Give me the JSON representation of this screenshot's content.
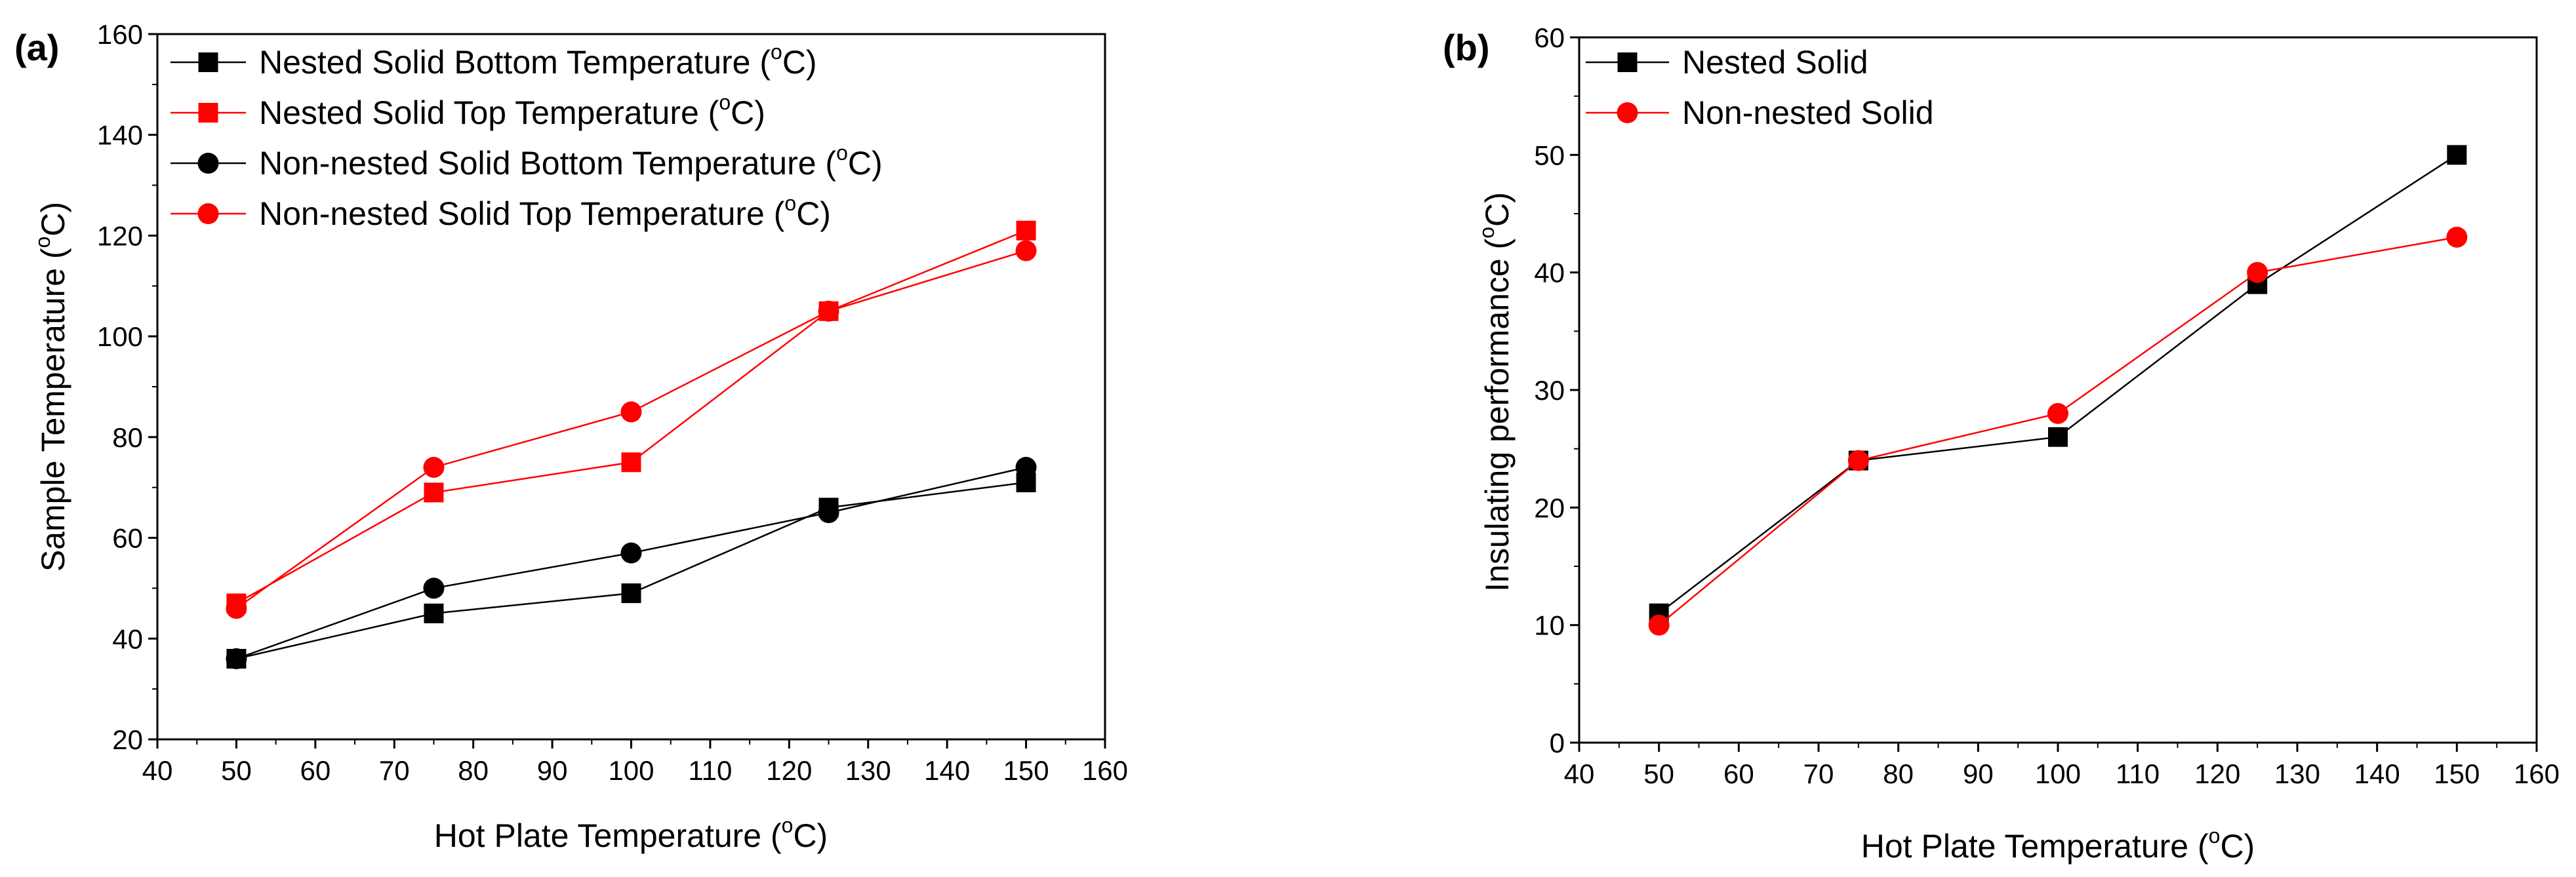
{
  "colors": {
    "black": "#000000",
    "red": "#ff0000"
  },
  "chart_data": [
    {
      "panel_label": "(a)",
      "type": "line",
      "xlabel": "Hot Plate Temperature (oC)",
      "xlabel_parts": {
        "before": "Hot Plate Temperature (",
        "sup": "o",
        "after": "C)"
      },
      "ylabel": "Sample Temperature (oC)",
      "ylabel_parts": {
        "before": "Sample Temperature (",
        "sup": "o",
        "after": "C)"
      },
      "xlim": [
        40,
        160
      ],
      "ylim": [
        20,
        160
      ],
      "xticks": [
        40,
        50,
        60,
        70,
        80,
        90,
        100,
        110,
        120,
        130,
        140,
        150,
        160
      ],
      "yticks": [
        20,
        40,
        60,
        80,
        100,
        120,
        140,
        160
      ],
      "grid": false,
      "legend_position": "top-left",
      "series": [
        {
          "name": "Nested Solid Bottom Temperature (oC)",
          "label_before": "Nested Solid Bottom Temperature (",
          "label_sup": "o",
          "label_after": "C)",
          "color": "#000000",
          "marker": "square",
          "x": [
            50,
            75,
            100,
            125,
            150
          ],
          "y": [
            36,
            45,
            49,
            66,
            71
          ]
        },
        {
          "name": "Nested Solid Top Temperature (oC)",
          "label_before": "Nested Solid Top Temperature (",
          "label_sup": "o",
          "label_after": "C)",
          "color": "#ff0000",
          "marker": "square",
          "x": [
            50,
            75,
            100,
            125,
            150
          ],
          "y": [
            47,
            69,
            75,
            105,
            121
          ]
        },
        {
          "name": "Non-nested Solid Bottom Temperature (oC)",
          "label_before": "Non-nested Solid Bottom Temperature (",
          "label_sup": "o",
          "label_after": "C)",
          "color": "#000000",
          "marker": "circle",
          "x": [
            50,
            75,
            100,
            125,
            150
          ],
          "y": [
            36,
            50,
            57,
            65,
            74
          ]
        },
        {
          "name": "Non-nested Solid Top Temperature (oC)",
          "label_before": "Non-nested Solid Top Temperature (",
          "label_sup": "o",
          "label_after": "C)",
          "color": "#ff0000",
          "marker": "circle",
          "x": [
            50,
            75,
            100,
            125,
            150
          ],
          "y": [
            46,
            74,
            85,
            105,
            117
          ]
        }
      ]
    },
    {
      "panel_label": "(b)",
      "type": "line",
      "xlabel": "Hot Plate Temperature (oC)",
      "xlabel_parts": {
        "before": "Hot Plate Temperature (",
        "sup": "o",
        "after": "C)"
      },
      "ylabel": "Insulating performance (oC)",
      "ylabel_parts": {
        "before": "Insulating performance (",
        "sup": "o",
        "after": "C)"
      },
      "xlim": [
        40,
        160
      ],
      "ylim": [
        0,
        60
      ],
      "xticks": [
        40,
        50,
        60,
        70,
        80,
        90,
        100,
        110,
        120,
        130,
        140,
        150,
        160
      ],
      "yticks": [
        0,
        10,
        20,
        30,
        40,
        50,
        60
      ],
      "grid": false,
      "legend_position": "top-left",
      "series": [
        {
          "name": "Nested Solid",
          "label_before": "Nested Solid",
          "label_sup": "",
          "label_after": "",
          "color": "#000000",
          "marker": "square",
          "x": [
            50,
            75,
            100,
            125,
            150
          ],
          "y": [
            11,
            24,
            26,
            39,
            50
          ]
        },
        {
          "name": "Non-nested Solid",
          "label_before": "Non-nested Solid",
          "label_sup": "",
          "label_after": "",
          "color": "#ff0000",
          "marker": "circle",
          "x": [
            50,
            75,
            100,
            125,
            150
          ],
          "y": [
            10,
            24,
            28,
            40,
            43
          ]
        }
      ]
    }
  ]
}
